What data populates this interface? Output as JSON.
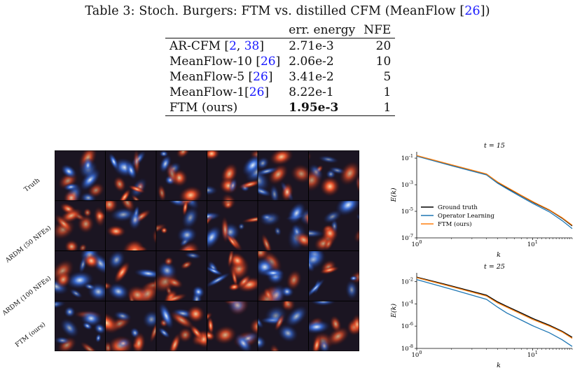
{
  "caption": {
    "prefix": "Table 3: Stoch. Burgers: FTM vs. distilled CFM (MeanFlow [",
    "cite": "26",
    "suffix": "])"
  },
  "table": {
    "headers": [
      "",
      "err. energy",
      "NFE"
    ],
    "rows": [
      {
        "method": "AR-CFM [",
        "cites": [
          "2",
          "38"
        ],
        "after": "]",
        "err": "2.71e-3",
        "nfe": "20",
        "bold": false
      },
      {
        "method": "MeanFlow-10 [",
        "cites": [
          "26"
        ],
        "after": "]",
        "err": "2.06e-2",
        "nfe": "10",
        "bold": false
      },
      {
        "method": "MeanFlow-5 [",
        "cites": [
          "26"
        ],
        "after": "]",
        "err": "3.41e-2",
        "nfe": "5",
        "bold": false
      },
      {
        "method": "MeanFlow-1[",
        "cites": [
          "26"
        ],
        "after": "]",
        "err": "8.22e-1",
        "nfe": "1",
        "bold": false
      },
      {
        "method": "FTM (ours)",
        "cites": [],
        "after": "",
        "err": "1.95e-3",
        "nfe": "1",
        "bold": true
      }
    ]
  },
  "grid": {
    "row_labels": [
      "Truth",
      "ARDM (50 NFEs)",
      "ARDM (100 NFEs)",
      "FTM (ours)"
    ],
    "n_rows": 4,
    "n_cols": 6
  },
  "chart_data": [
    {
      "type": "line",
      "title": "t = 15",
      "xlabel": "k",
      "ylabel": "E(k)",
      "xscale": "log",
      "yscale": "log",
      "xlim": [
        1,
        22
      ],
      "ylim": [
        1e-07,
        0.3
      ],
      "xticks": [
        "10^0",
        "10^1"
      ],
      "yticks": [
        "10^-7",
        "10^-5",
        "10^-3",
        "10^-1"
      ],
      "legend": "lower-left",
      "series": [
        {
          "name": "Ground truth",
          "color": "#000000",
          "x": [
            1,
            2,
            4,
            5,
            6,
            8,
            10,
            14,
            18,
            22
          ],
          "y": [
            0.15,
            0.03,
            0.006,
            0.0015,
            0.0006,
            0.00015,
            5e-05,
            1.2e-05,
            3e-06,
            8e-07
          ]
        },
        {
          "name": "Operator Learning",
          "color": "#1f77b4",
          "x": [
            1,
            2,
            4,
            5,
            6,
            8,
            10,
            14,
            18,
            22
          ],
          "y": [
            0.14,
            0.027,
            0.0055,
            0.0013,
            0.0005,
            0.00012,
            4e-05,
            9e-06,
            2e-06,
            5e-07
          ]
        },
        {
          "name": "FTM (ours)",
          "color": "#ff7f0e",
          "x": [
            1,
            2,
            4,
            5,
            6,
            8,
            10,
            14,
            18,
            22
          ],
          "y": [
            0.16,
            0.032,
            0.0065,
            0.0016,
            0.00065,
            0.00016,
            5.5e-05,
            1.3e-05,
            3.3e-06,
            9e-07
          ]
        }
      ]
    },
    {
      "type": "line",
      "title": "t = 25",
      "xlabel": "k",
      "ylabel": "E(k)",
      "xscale": "log",
      "yscale": "log",
      "xlim": [
        1,
        22
      ],
      "ylim": [
        1e-08,
        0.06
      ],
      "xticks": [
        "10^0",
        "10^1"
      ],
      "yticks": [
        "10^-8",
        "10^-6",
        "10^-4",
        "10^-2"
      ],
      "series": [
        {
          "name": "Ground truth",
          "color": "#000000",
          "x": [
            1,
            2,
            4,
            5,
            6,
            8,
            10,
            14,
            18,
            22
          ],
          "y": [
            0.025,
            0.004,
            0.0006,
            0.00015,
            6e-05,
            1.5e-05,
            5e-06,
            1.2e-06,
            3.5e-07,
            1e-07
          ]
        },
        {
          "name": "Operator Learning",
          "color": "#1f77b4",
          "x": [
            1,
            2,
            4,
            5,
            6,
            8,
            10,
            14,
            18,
            22
          ],
          "y": [
            0.015,
            0.002,
            0.00025,
            5e-05,
            1.5e-05,
            3.5e-06,
            1.1e-06,
            2.5e-07,
            6e-08,
            1.5e-08
          ]
        },
        {
          "name": "FTM (ours)",
          "color": "#ff7f0e",
          "x": [
            1,
            2,
            4,
            5,
            6,
            8,
            10,
            14,
            18,
            22
          ],
          "y": [
            0.022,
            0.0035,
            0.0005,
            0.00012,
            5e-05,
            1.2e-05,
            4e-06,
            1e-06,
            3e-07,
            8e-08
          ]
        }
      ]
    }
  ]
}
